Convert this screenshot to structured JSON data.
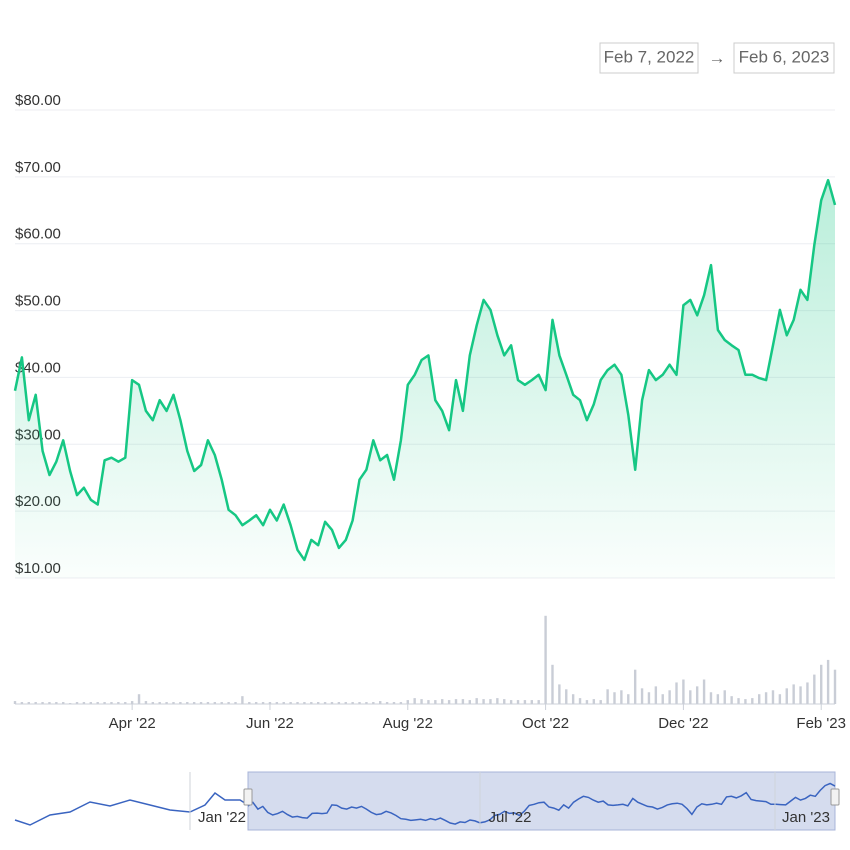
{
  "chart_data": {
    "type": "line",
    "date_range": {
      "start": "Feb 7, 2022",
      "separator": "→",
      "end": "Feb 6, 2023"
    },
    "categories": [
      null,
      null,
      null,
      null,
      null,
      null,
      null,
      null,
      null,
      null,
      null,
      null,
      null,
      null,
      null,
      null,
      null,
      "Apr '22",
      null,
      null,
      null,
      null,
      null,
      null,
      null,
      null,
      null,
      null,
      null,
      null,
      null,
      null,
      null,
      null,
      null,
      null,
      null,
      "Jun '22",
      null,
      null,
      null,
      null,
      null,
      null,
      null,
      null,
      null,
      null,
      null,
      null,
      null,
      null,
      null,
      null,
      null,
      null,
      null,
      "Aug '22",
      null,
      null,
      null,
      null,
      null,
      null,
      null,
      null,
      null,
      null,
      null,
      null,
      null,
      null,
      null,
      null,
      null,
      null,
      null,
      "Oct '22",
      null,
      null,
      null,
      null,
      null,
      null,
      null,
      null,
      null,
      null,
      null,
      null,
      null,
      null,
      null,
      null,
      null,
      null,
      null,
      "Dec '22",
      null,
      null,
      null,
      null,
      null,
      null,
      null,
      null,
      null,
      null,
      null,
      null,
      null,
      null,
      null,
      null,
      null,
      null,
      null,
      "Feb '23",
      null,
      null
    ],
    "series": [
      {
        "color": "#16c784",
        "values": [
          38,
          43,
          33.6,
          37.4,
          29,
          25.4,
          27.4,
          30.6,
          26,
          22.4,
          23.5,
          21.7,
          21,
          27.6,
          28,
          27.4,
          28,
          39.6,
          38.9,
          35,
          33.6,
          36.6,
          35,
          37.4,
          33.6,
          29,
          26,
          26.9,
          30.6,
          28.4,
          24.7,
          20.2,
          19.4,
          17.9,
          18.6,
          19.4,
          17.9,
          20.2,
          18.6,
          21,
          17.9,
          14.2,
          12.7,
          15.7,
          14.9,
          18.4,
          17.2,
          14.5,
          15.7,
          18.6,
          24.7,
          26.2,
          30.6,
          27.6,
          28.4,
          24.7,
          30.6,
          38.9,
          40.4,
          42.6,
          43.3,
          36.6,
          35,
          32.1,
          39.6,
          35,
          43.3,
          47.8,
          51.6,
          50.1,
          46.3,
          43.3,
          44.8,
          39.6,
          38.9,
          39.6,
          40.4,
          38.1,
          48.6,
          43.3,
          40.4,
          37.4,
          36.6,
          33.6,
          36,
          39.6,
          41.1,
          41.9,
          40.4,
          34.4,
          26.2,
          36.6,
          41.1,
          39.6,
          40.4,
          41.9,
          40.4,
          50.8,
          51.6,
          49.3,
          52.3,
          56.8,
          47.1,
          45.6,
          44.8,
          44.1,
          40.4,
          40.4,
          39.9,
          39.6,
          44.8,
          50.1,
          46.3,
          48.6,
          53.1,
          51.6,
          59.8,
          66.5,
          69.5,
          65.8
        ]
      }
    ],
    "volume": {
      "color": "#c9cdd6",
      "ylim": [
        0,
        100
      ],
      "values": [
        3,
        2,
        2,
        2,
        2,
        2,
        2,
        2,
        1,
        2,
        2,
        2,
        2,
        2,
        2,
        2,
        2,
        3,
        10,
        3,
        2,
        2,
        2,
        2,
        2,
        2,
        2,
        2,
        2,
        2,
        2,
        2,
        2,
        8,
        2,
        2,
        2,
        2,
        2,
        2,
        2,
        2,
        2,
        2,
        2,
        2,
        2,
        2,
        2,
        2,
        2,
        2,
        2,
        3,
        2,
        2,
        2,
        4,
        6,
        5,
        4,
        4,
        5,
        4,
        5,
        5,
        4,
        6,
        5,
        5,
        6,
        5,
        4,
        4,
        4,
        4,
        4,
        90,
        40,
        20,
        15,
        10,
        6,
        4,
        5,
        4,
        15,
        12,
        14,
        10,
        35,
        16,
        12,
        18,
        10,
        14,
        22,
        25,
        14,
        18,
        25,
        12,
        10,
        14,
        8,
        6,
        5,
        6,
        10,
        12,
        14,
        10,
        16,
        20,
        18,
        22,
        30,
        40,
        45,
        35
      ]
    },
    "ylim": [
      10,
      80
    ],
    "yticks": [
      {
        "value": 10,
        "label": "$10.00"
      },
      {
        "value": 20,
        "label": "$20.00"
      },
      {
        "value": 30,
        "label": "$30.00"
      },
      {
        "value": 40,
        "label": "$40.00"
      },
      {
        "value": 50,
        "label": "$50.00"
      },
      {
        "value": 60,
        "label": "$60.00"
      },
      {
        "value": 70,
        "label": "$70.00"
      },
      {
        "value": 80,
        "label": "$80.00"
      }
    ],
    "grid": true,
    "navigator": {
      "labels": [
        "Jan '22",
        "Jul '22",
        "Jan '23"
      ]
    }
  }
}
